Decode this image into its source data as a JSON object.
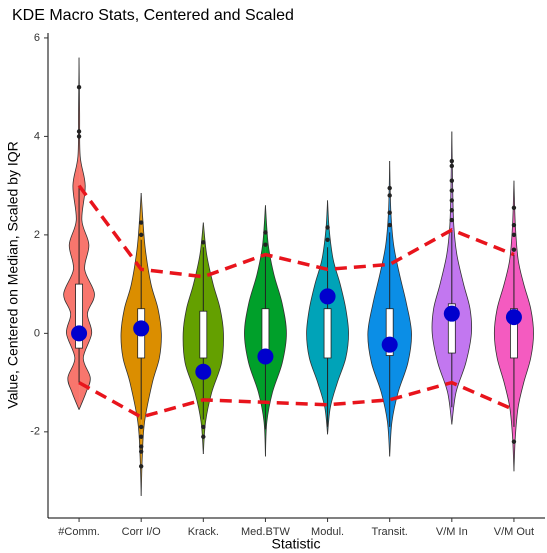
{
  "chart_data": {
    "type": "violin",
    "title": "KDE Macro Stats, Centered and Scaled",
    "x_label": "Statistic",
    "y_label": "Value, Centered on Median, Scaled by IQR",
    "ylim": [
      -3.75,
      6.1
    ],
    "yticks": [
      -2,
      0,
      2,
      4,
      6
    ],
    "categories": [
      "#Comm.",
      "Corr I/O",
      "Krack.",
      "Med.BTW",
      "Modul.",
      "Transit.",
      "V/M In",
      "V/M Out"
    ],
    "series": [
      {
        "name": "#Comm.",
        "color": "#f8766d",
        "density_y": [
          -1.55,
          -1.2,
          -0.9,
          -0.5,
          0,
          0.4,
          0.8,
          1.3,
          1.8,
          2.3,
          3.0,
          3.6,
          4.5,
          5.6
        ],
        "density": [
          0,
          0.25,
          0.4,
          0.15,
          0.45,
          0.3,
          0.55,
          0.2,
          0.35,
          0.1,
          0.22,
          0.04,
          0.02,
          0
        ],
        "q1": -0.3,
        "q3": 1.0,
        "whisker_low": -1.0,
        "whisker_high": 3.0,
        "outliers": [
          4.0,
          4.1,
          5.0
        ],
        "mean": 0
      },
      {
        "name": "Corr I/O",
        "color": "#db8e00",
        "density_y": [
          -3.3,
          -2.5,
          -1.8,
          -1,
          -0.5,
          0,
          0.5,
          1,
          1.7,
          2.3,
          2.85
        ],
        "density": [
          0,
          0.04,
          0.12,
          0.4,
          0.65,
          0.72,
          0.6,
          0.35,
          0.15,
          0.06,
          0
        ],
        "q1": -0.5,
        "q3": 0.5,
        "whisker_low": -1.75,
        "whisker_high": 1.9,
        "outliers": [
          -1.9,
          -2.1,
          -2.3,
          -2.4,
          -2.7,
          2.0,
          2.25
        ],
        "mean": 0.1
      },
      {
        "name": "Krack.",
        "color": "#64a000",
        "density_y": [
          -2.45,
          -1.8,
          -1.2,
          -0.6,
          0,
          0.5,
          1.0,
          1.6,
          2.25
        ],
        "density": [
          0,
          0.08,
          0.3,
          0.65,
          0.72,
          0.6,
          0.35,
          0.12,
          0
        ],
        "q1": -0.5,
        "q3": 0.45,
        "whisker_low": -1.75,
        "whisker_high": 1.75,
        "outliers": [
          1.85,
          -1.9,
          -2.1
        ],
        "mean": -0.78
      },
      {
        "name": "Med.BTW",
        "color": "#00a02a",
        "density_y": [
          -2.5,
          -1.8,
          -1.2,
          -0.6,
          0,
          0.6,
          1.2,
          1.8,
          2.6
        ],
        "density": [
          0,
          0.05,
          0.25,
          0.6,
          0.75,
          0.6,
          0.3,
          0.1,
          0
        ],
        "q1": -0.5,
        "q3": 0.5,
        "whisker_low": -1.95,
        "whisker_high": 1.6,
        "outliers": [
          1.8,
          2.05
        ],
        "mean": -0.47
      },
      {
        "name": "Modul.",
        "color": "#00a3b8",
        "density_y": [
          -2.05,
          -1.5,
          -1,
          -0.5,
          0,
          0.5,
          1,
          1.5,
          2.1,
          2.7
        ],
        "density": [
          0,
          0.1,
          0.35,
          0.65,
          0.75,
          0.65,
          0.45,
          0.2,
          0.06,
          0
        ],
        "q1": -0.5,
        "q3": 0.5,
        "whisker_low": -1.9,
        "whisker_high": 1.75,
        "outliers": [
          1.9,
          2.15
        ],
        "mean": 0.75
      },
      {
        "name": "Transit.",
        "color": "#0b8ee6",
        "density_y": [
          -2.5,
          -1.8,
          -1.2,
          -0.6,
          0,
          0.6,
          1.2,
          1.8,
          2.5,
          3.5
        ],
        "density": [
          0,
          0.08,
          0.3,
          0.65,
          0.78,
          0.6,
          0.35,
          0.14,
          0.04,
          0
        ],
        "q1": -0.45,
        "q3": 0.5,
        "whisker_low": -1.9,
        "whisker_high": 2.05,
        "outliers": [
          2.2,
          2.45,
          2.8,
          2.95
        ],
        "mean": -0.23
      },
      {
        "name": "V/M In",
        "color": "#c277f0",
        "density_y": [
          -1.85,
          -1.2,
          -0.6,
          0,
          0.5,
          1,
          1.6,
          2.2,
          3,
          4.1
        ],
        "density": [
          0,
          0.15,
          0.5,
          0.7,
          0.65,
          0.42,
          0.18,
          0.07,
          0.03,
          0
        ],
        "q1": -0.4,
        "q3": 0.6,
        "whisker_low": -1.5,
        "whisker_high": 2.1,
        "outliers": [
          2.3,
          2.5,
          2.7,
          2.9,
          3.1,
          3.4,
          3.5
        ],
        "mean": 0.4
      },
      {
        "name": "V/M Out",
        "color": "#f45bc0",
        "density_y": [
          -2.8,
          -2.1,
          -1.5,
          -1,
          -0.5,
          0,
          0.5,
          1,
          1.5,
          2.2,
          3.1
        ],
        "density": [
          0,
          0.05,
          0.15,
          0.35,
          0.6,
          0.7,
          0.6,
          0.35,
          0.15,
          0.05,
          0
        ],
        "q1": -0.5,
        "q3": 0.5,
        "whisker_low": -1.9,
        "whisker_high": 1.6,
        "outliers": [
          1.7,
          2.0,
          2.2,
          2.55,
          -2.2
        ],
        "mean": 0.33
      }
    ],
    "mean_color": "#0000cd",
    "band_color": "#e8141c",
    "upper_band": [
      3.0,
      1.3,
      1.15,
      1.6,
      1.3,
      1.4,
      2.1,
      1.6
    ],
    "lower_band": [
      -1.0,
      -1.7,
      -1.35,
      -1.4,
      -1.45,
      -1.35,
      -1.0,
      -1.55
    ]
  }
}
